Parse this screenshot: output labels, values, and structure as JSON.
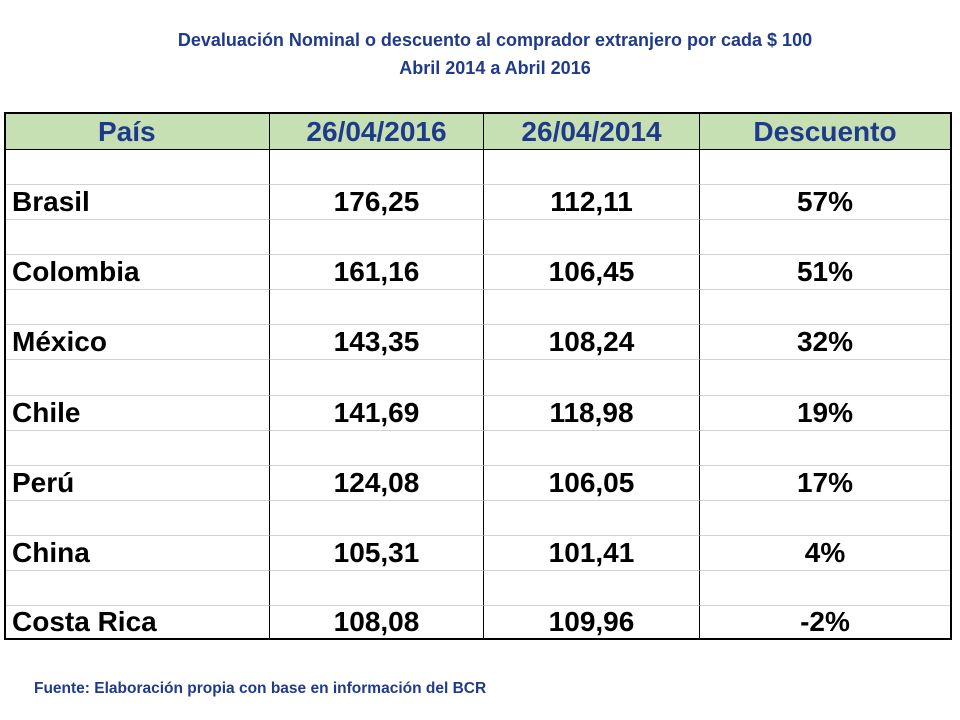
{
  "title": {
    "line1": "Devaluación Nominal o descuento al comprador extranjero por cada $ 100",
    "line2": "Abril 2014 a Abril 2016"
  },
  "table": {
    "headers": [
      "País",
      "26/04/2016",
      "26/04/2014",
      "Descuento"
    ],
    "header_color": "#c6e0b4",
    "rows": [
      [
        "Brasil",
        "176,25",
        "112,11",
        "57%"
      ],
      [
        "Colombia",
        "161,16",
        "106,45",
        "51%"
      ],
      [
        "México",
        "143,35",
        "108,24",
        "32%"
      ],
      [
        "Chile",
        "141,69",
        "118,98",
        "19%"
      ],
      [
        "Perú",
        "124,08",
        "106,05",
        "17%"
      ],
      [
        "China",
        "105,31",
        "101,41",
        "4%"
      ],
      [
        "Costa Rica",
        "108,08",
        "109,96",
        "-2%"
      ]
    ]
  },
  "footer": "Fuente: Elaboración propia con base en información del BCR"
}
